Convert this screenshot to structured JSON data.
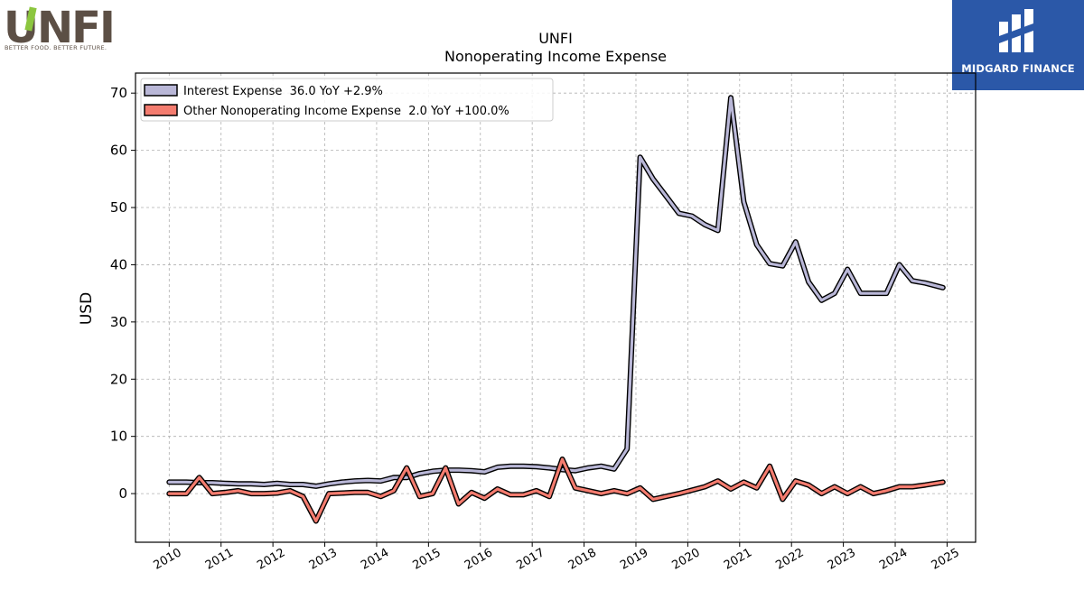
{
  "branding": {
    "left_logo_text": "UNFI",
    "left_logo_tagline": "BETTER FOOD. BETTER FUTURE.",
    "right_logo_text": "MIDGARD FINANCE",
    "right_logo_color": "#2b58a8"
  },
  "chart_data": {
    "type": "line",
    "title": "UNFI",
    "subtitle": "Nonoperating Income Expense",
    "xlabel": "",
    "ylabel": "USD",
    "xlim": [
      2009.35,
      2025.55
    ],
    "ylim": [
      -8.5,
      73.5
    ],
    "yticks": [
      0,
      10,
      20,
      30,
      40,
      50,
      60,
      70
    ],
    "xticks": [
      "2010",
      "2011",
      "2012",
      "2013",
      "2014",
      "2015",
      "2016",
      "2017",
      "2018",
      "2019",
      "2020",
      "2021",
      "2022",
      "2023",
      "2024",
      "2025"
    ],
    "grid": true,
    "legend_position": "top-left",
    "series": [
      {
        "name": "Interest Expense  36.0 YoY +2.9%",
        "color": "#b9b7d7",
        "points": [
          [
            2010.0,
            2.0
          ],
          [
            2010.33,
            2.0
          ],
          [
            2010.58,
            1.9
          ],
          [
            2010.83,
            1.9
          ],
          [
            2011.08,
            1.8
          ],
          [
            2011.33,
            1.7
          ],
          [
            2011.58,
            1.7
          ],
          [
            2011.83,
            1.6
          ],
          [
            2012.08,
            1.8
          ],
          [
            2012.33,
            1.6
          ],
          [
            2012.58,
            1.6
          ],
          [
            2012.83,
            1.3
          ],
          [
            2013.08,
            1.7
          ],
          [
            2013.33,
            2.0
          ],
          [
            2013.58,
            2.2
          ],
          [
            2013.83,
            2.3
          ],
          [
            2014.08,
            2.2
          ],
          [
            2014.33,
            2.8
          ],
          [
            2014.58,
            2.8
          ],
          [
            2014.83,
            3.5
          ],
          [
            2015.08,
            3.9
          ],
          [
            2015.33,
            4.1
          ],
          [
            2015.58,
            4.1
          ],
          [
            2015.83,
            4.0
          ],
          [
            2016.08,
            3.8
          ],
          [
            2016.33,
            4.6
          ],
          [
            2016.58,
            4.8
          ],
          [
            2016.83,
            4.8
          ],
          [
            2017.08,
            4.7
          ],
          [
            2017.33,
            4.5
          ],
          [
            2017.58,
            4.2
          ],
          [
            2017.83,
            4.0
          ],
          [
            2018.08,
            4.5
          ],
          [
            2018.33,
            4.8
          ],
          [
            2018.58,
            4.3
          ],
          [
            2018.83,
            7.8
          ],
          [
            2019.08,
            58.8
          ],
          [
            2019.33,
            55.0
          ],
          [
            2019.58,
            52.0
          ],
          [
            2019.83,
            49.0
          ],
          [
            2020.08,
            48.5
          ],
          [
            2020.33,
            47.0
          ],
          [
            2020.58,
            46.0
          ],
          [
            2020.83,
            69.2
          ],
          [
            2021.08,
            51.0
          ],
          [
            2021.33,
            43.5
          ],
          [
            2021.58,
            40.2
          ],
          [
            2021.83,
            39.8
          ],
          [
            2022.08,
            44.0
          ],
          [
            2022.33,
            37.0
          ],
          [
            2022.58,
            33.8
          ],
          [
            2022.83,
            35.0
          ],
          [
            2023.08,
            39.2
          ],
          [
            2023.33,
            35.0
          ],
          [
            2023.58,
            35.0
          ],
          [
            2023.83,
            35.0
          ],
          [
            2024.08,
            40.0
          ],
          [
            2024.33,
            37.2
          ],
          [
            2024.58,
            36.8
          ],
          [
            2024.92,
            36.0
          ]
        ]
      },
      {
        "name": "Other Nonoperating Income Expense  2.0 YoY +100.0%",
        "color": "#f47c6f",
        "points": [
          [
            2010.0,
            0.0
          ],
          [
            2010.33,
            0.0
          ],
          [
            2010.58,
            2.8
          ],
          [
            2010.83,
            0.0
          ],
          [
            2011.08,
            0.2
          ],
          [
            2011.33,
            0.5
          ],
          [
            2011.58,
            0.0
          ],
          [
            2011.83,
            0.0
          ],
          [
            2012.08,
            0.1
          ],
          [
            2012.33,
            0.5
          ],
          [
            2012.58,
            -0.5
          ],
          [
            2012.83,
            -4.8
          ],
          [
            2013.08,
            0.0
          ],
          [
            2013.33,
            0.1
          ],
          [
            2013.58,
            0.2
          ],
          [
            2013.83,
            0.2
          ],
          [
            2014.08,
            -0.5
          ],
          [
            2014.33,
            0.5
          ],
          [
            2014.58,
            4.5
          ],
          [
            2014.83,
            -0.5
          ],
          [
            2015.08,
            0.0
          ],
          [
            2015.33,
            4.5
          ],
          [
            2015.58,
            -1.8
          ],
          [
            2015.83,
            0.2
          ],
          [
            2016.08,
            -0.8
          ],
          [
            2016.33,
            0.8
          ],
          [
            2016.58,
            -0.2
          ],
          [
            2016.83,
            -0.2
          ],
          [
            2017.08,
            0.5
          ],
          [
            2017.33,
            -0.5
          ],
          [
            2017.58,
            6.0
          ],
          [
            2017.83,
            1.0
          ],
          [
            2018.08,
            0.5
          ],
          [
            2018.33,
            0.0
          ],
          [
            2018.58,
            0.5
          ],
          [
            2018.83,
            0.0
          ],
          [
            2019.08,
            1.0
          ],
          [
            2019.33,
            -1.0
          ],
          [
            2019.83,
            0.0
          ],
          [
            2020.33,
            1.2
          ],
          [
            2020.58,
            2.2
          ],
          [
            2020.83,
            0.8
          ],
          [
            2021.08,
            2.0
          ],
          [
            2021.33,
            1.0
          ],
          [
            2021.58,
            4.8
          ],
          [
            2021.83,
            -1.0
          ],
          [
            2022.08,
            2.2
          ],
          [
            2022.33,
            1.5
          ],
          [
            2022.58,
            0.0
          ],
          [
            2022.83,
            1.2
          ],
          [
            2023.08,
            0.0
          ],
          [
            2023.33,
            1.2
          ],
          [
            2023.58,
            0.0
          ],
          [
            2023.83,
            0.5
          ],
          [
            2024.08,
            1.2
          ],
          [
            2024.33,
            1.2
          ],
          [
            2024.58,
            1.5
          ],
          [
            2024.92,
            2.0
          ]
        ]
      }
    ]
  }
}
